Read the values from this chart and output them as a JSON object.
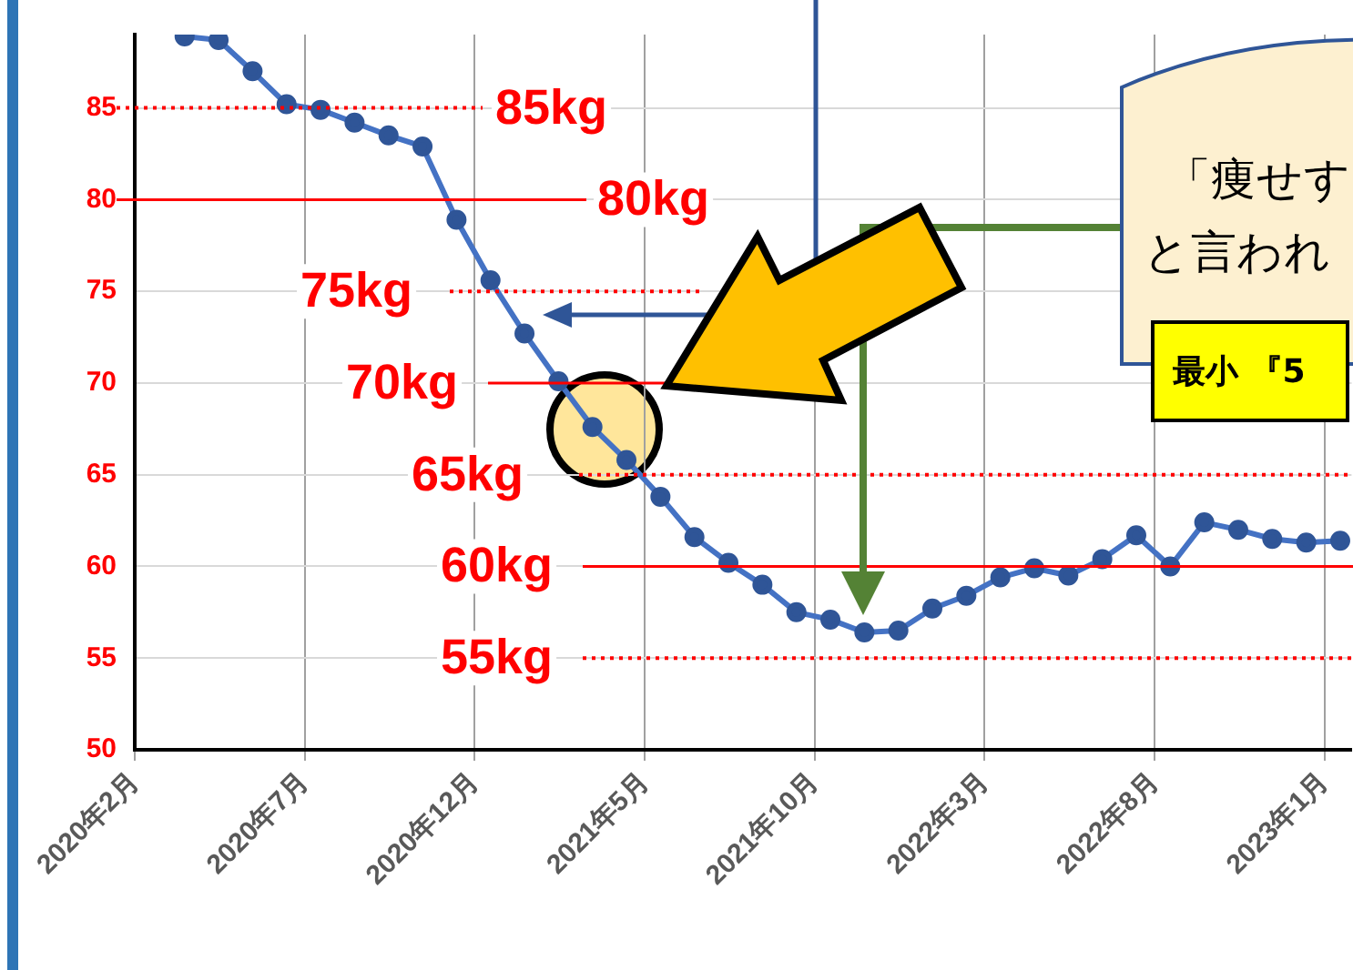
{
  "chart_data": {
    "type": "line",
    "x": [
      "2020-03-15",
      "2020-04-15",
      "2020-05-15",
      "2020-06-15",
      "2020-07-15",
      "2020-08-15",
      "2020-09-15",
      "2020-10-15",
      "2020-11-15",
      "2020-12-15",
      "2021-01-15",
      "2021-02-15",
      "2021-03-15",
      "2021-04-15",
      "2021-05-15",
      "2021-06-15",
      "2021-07-15",
      "2021-08-15",
      "2021-09-15",
      "2021-10-15",
      "2021-11-15",
      "2021-12-15",
      "2022-01-15",
      "2022-02-15",
      "2022-03-15",
      "2022-04-15",
      "2022-05-15",
      "2022-06-15",
      "2022-07-15",
      "2022-08-15",
      "2022-09-15",
      "2022-10-15",
      "2022-11-15",
      "2022-12-15",
      "2023-01-15"
    ],
    "series": [
      {
        "color": "#4472c4",
        "values": [
          88.9,
          88.7,
          87.0,
          85.2,
          84.9,
          84.2,
          83.5,
          82.9,
          78.9,
          75.6,
          72.7,
          70.1,
          67.6,
          65.8,
          63.8,
          61.6,
          60.2,
          59.0,
          57.5,
          57.1,
          56.4,
          56.5,
          57.7,
          58.4,
          59.4,
          59.9,
          59.5,
          60.4,
          61.7,
          60.0,
          62.4,
          62.0,
          61.5,
          61.3,
          61.4
        ]
      }
    ],
    "xlim": [
      "2020-02",
      "2023-01-25"
    ],
    "xticks": [
      {
        "value": "2020-02",
        "label": "2020年2月"
      },
      {
        "value": "2020-07",
        "label": "2020年7月"
      },
      {
        "value": "2020-12",
        "label": "2020年12月"
      },
      {
        "value": "2021-05",
        "label": "2021年5月"
      },
      {
        "value": "2021-10",
        "label": "2021年10月"
      },
      {
        "value": "2022-03",
        "label": "2022年3月"
      },
      {
        "value": "2022-08",
        "label": "2022年8月"
      },
      {
        "value": "2023-01",
        "label": "2023年1月"
      }
    ],
    "ylim": [
      50,
      89
    ],
    "yticks": [
      50,
      55,
      60,
      65,
      70,
      75,
      80,
      85
    ],
    "grid": true,
    "marker": "circle",
    "ref_lines": [
      {
        "axis": "y",
        "value": 85,
        "label": "85kg",
        "color": "#ff0000",
        "line_style": "dotted"
      },
      {
        "axis": "y",
        "value": 80,
        "label": "80kg",
        "color": "#ff0000",
        "line_style": "solid"
      },
      {
        "axis": "y",
        "value": 75,
        "label": "75kg",
        "color": "#ff0000",
        "line_style": "dotted"
      },
      {
        "axis": "y",
        "value": 70,
        "label": "70kg",
        "color": "#ff0000",
        "line_style": "solid"
      },
      {
        "axis": "y",
        "value": 65,
        "label": "65kg",
        "color": "#ff0000",
        "line_style": "dotted"
      },
      {
        "axis": "y",
        "value": 60,
        "label": "60kg",
        "color": "#ff0000",
        "line_style": "solid"
      },
      {
        "axis": "y",
        "value": 55,
        "label": "55kg",
        "color": "#ff0000",
        "line_style": "dotted"
      }
    ],
    "annotations": [
      "「痩せす",
      "と言われ",
      "最小 『5"
    ]
  }
}
